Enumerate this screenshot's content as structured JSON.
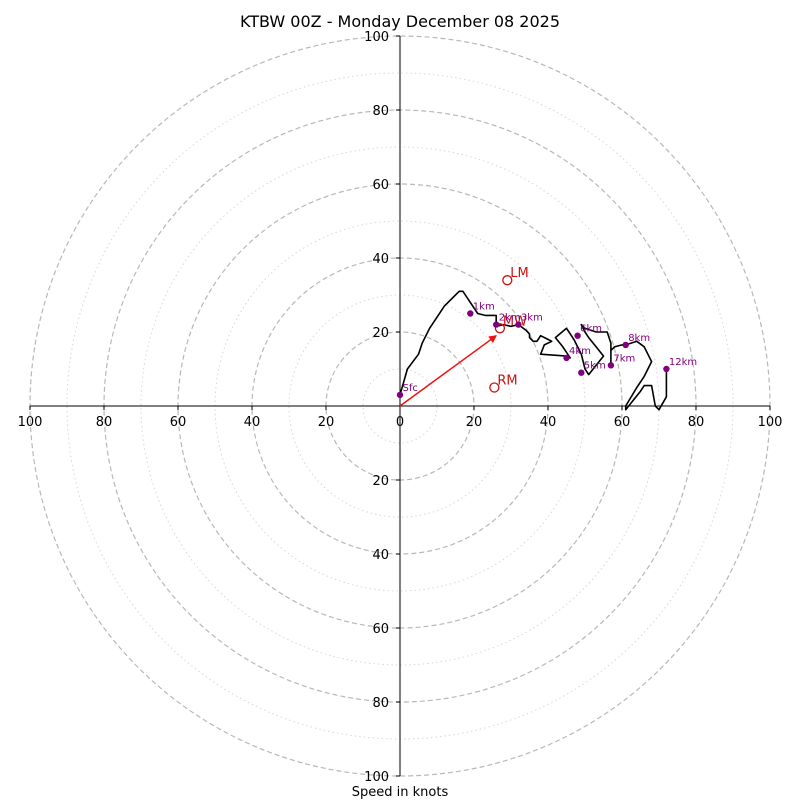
{
  "chart_data": {
    "type": "hodograph",
    "title": "KTBW 00Z - Monday December 08 2025",
    "xlabel": "Speed in knots",
    "units": "knots",
    "range": 100,
    "ring_major": [
      20,
      40,
      60,
      80,
      100
    ],
    "ring_minor": [
      10,
      30,
      50,
      70,
      90
    ],
    "x_tick_labels": [
      "100",
      "80",
      "60",
      "40",
      "20",
      "0",
      "20",
      "40",
      "60",
      "80",
      "100"
    ],
    "y_tick_labels_up": [
      "20",
      "40",
      "60",
      "80",
      "100"
    ],
    "y_tick_labels_down": [
      "20",
      "40",
      "60",
      "80",
      "100"
    ],
    "trace": [
      [
        0,
        3
      ],
      [
        2,
        10
      ],
      [
        5,
        14
      ],
      [
        6,
        17
      ],
      [
        8,
        21
      ],
      [
        10,
        24
      ],
      [
        12,
        27
      ],
      [
        14,
        29
      ],
      [
        16,
        31
      ],
      [
        17,
        31
      ],
      [
        19,
        28
      ],
      [
        21,
        25
      ],
      [
        23,
        24.5
      ],
      [
        25,
        24.5
      ],
      [
        26,
        24.5
      ],
      [
        26,
        23
      ],
      [
        26,
        21.5
      ],
      [
        28,
        22
      ],
      [
        30,
        21.5
      ],
      [
        32,
        22
      ],
      [
        34,
        20.5
      ],
      [
        35,
        19.5
      ],
      [
        35,
        18.5
      ],
      [
        36,
        17.5
      ],
      [
        37,
        17.5
      ],
      [
        38,
        19
      ],
      [
        40,
        18
      ],
      [
        41,
        17.5
      ],
      [
        39,
        16.5
      ],
      [
        38,
        14
      ],
      [
        45,
        13.5
      ],
      [
        46,
        13
      ],
      [
        44,
        16
      ],
      [
        42,
        18.5
      ],
      [
        45,
        21
      ],
      [
        47,
        18
      ],
      [
        49,
        14
      ],
      [
        50,
        10
      ],
      [
        51,
        8.5
      ],
      [
        53,
        11
      ],
      [
        55,
        13.5
      ],
      [
        53,
        16
      ],
      [
        51,
        18.5
      ],
      [
        50,
        20
      ],
      [
        49,
        22
      ],
      [
        50,
        21
      ],
      [
        53,
        20
      ],
      [
        56,
        20
      ],
      [
        57,
        17
      ],
      [
        57,
        13
      ],
      [
        57,
        11
      ],
      [
        57,
        15
      ],
      [
        58,
        16
      ],
      [
        60,
        16.5
      ],
      [
        61,
        16.5
      ],
      [
        64,
        17.5
      ],
      [
        66,
        16
      ],
      [
        68,
        12
      ],
      [
        66,
        8
      ],
      [
        64,
        5
      ],
      [
        61,
        0
      ],
      [
        61,
        -1
      ],
      [
        65,
        4
      ],
      [
        66,
        5.5
      ],
      [
        68,
        5.5
      ],
      [
        69,
        0
      ],
      [
        70,
        -1
      ],
      [
        72,
        2.5
      ],
      [
        72,
        6.5
      ],
      [
        72,
        10
      ]
    ],
    "height_points": [
      {
        "label": "Sfc",
        "u": 0,
        "v": 3
      },
      {
        "label": "1km",
        "u": 19,
        "v": 25
      },
      {
        "label": "2km",
        "u": 26,
        "v": 22
      },
      {
        "label": "3km",
        "u": 32,
        "v": 22
      },
      {
        "label": "4km",
        "u": 45,
        "v": 13
      },
      {
        "label": "5km",
        "u": 49,
        "v": 9
      },
      {
        "label": "6km",
        "u": 48,
        "v": 19
      },
      {
        "label": "7km",
        "u": 57,
        "v": 11
      },
      {
        "label": "8km",
        "u": 61,
        "v": 16.5
      },
      {
        "label": "12km",
        "u": 72,
        "v": 10
      }
    ],
    "storm_motions": [
      {
        "label": "LM",
        "u": 29,
        "v": 34
      },
      {
        "label": "MW",
        "u": 27,
        "v": 21
      },
      {
        "label": "RM",
        "u": 25.5,
        "v": 5
      }
    ],
    "vector": {
      "u": 26,
      "v": 19
    },
    "colors": {
      "trace": "#000000",
      "points": "#800080",
      "labels": "#800080",
      "motion": "#cc1111",
      "vector": "#ee1111",
      "ring_major": "#b8b8b8",
      "ring_minor": "#d6d6d6",
      "axis": "#000000"
    }
  }
}
